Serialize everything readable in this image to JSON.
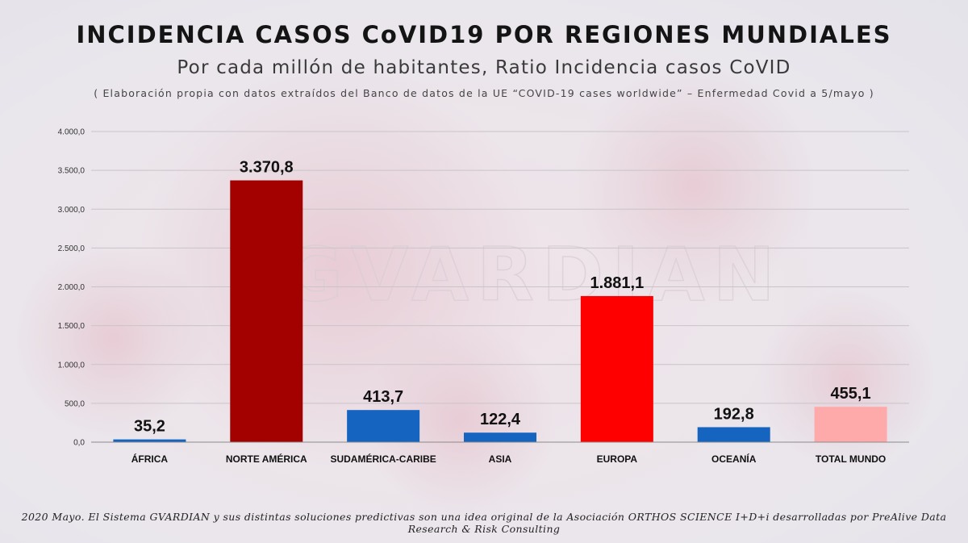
{
  "header": {
    "title": "INCIDENCIA CASOS CoVID19 POR REGIONES MUNDIALES",
    "subtitle": "Por cada millón de habitantes, Ratio Incidencia casos CoVID",
    "source": "( Elaboración propia con datos extraídos del Banco de datos de la UE “COVID-19 cases worldwide” – Enfermedad Covid a 5/mayo )"
  },
  "watermark": "GVARDIAN",
  "footer": "2020 Mayo. El Sistema GVARDIAN y sus distintas soluciones predictivas son una idea original de la Asociación ORTHOS SCIENCE I+D+i desarrolladas por PreAlive Data Research & Risk Consulting",
  "chart_data": {
    "type": "bar",
    "title": "INCIDENCIA CASOS CoVID19 POR REGIONES MUNDIALES",
    "xlabel": "",
    "ylabel": "",
    "ylim": [
      0,
      4000
    ],
    "yticks": [
      0,
      500,
      1000,
      1500,
      2000,
      2500,
      3000,
      3500,
      4000
    ],
    "ytick_labels": [
      "0,0",
      "500,0",
      "1.000,0",
      "1.500,0",
      "2.000,0",
      "2.500,0",
      "3.000,0",
      "3.500,0",
      "4.000,0"
    ],
    "grid": true,
    "legend": "none",
    "categories": [
      "ÁFRICA",
      "NORTE AMÉRICA",
      "SUDAMÉRICA-CARIBE",
      "ASIA",
      "EUROPA",
      "OCEANÍA",
      "TOTAL MUNDO"
    ],
    "values": [
      35.2,
      3370.8,
      413.7,
      122.4,
      1881.1,
      192.8,
      455.1
    ],
    "value_labels": [
      "35,2",
      "3.370,8",
      "413,7",
      "122,4",
      "1.881,1",
      "192,8",
      "455,1"
    ],
    "colors": [
      "#1565c0",
      "#a30000",
      "#1565c0",
      "#1565c0",
      "#ff0000",
      "#1565c0",
      "#ffaaaa"
    ]
  }
}
